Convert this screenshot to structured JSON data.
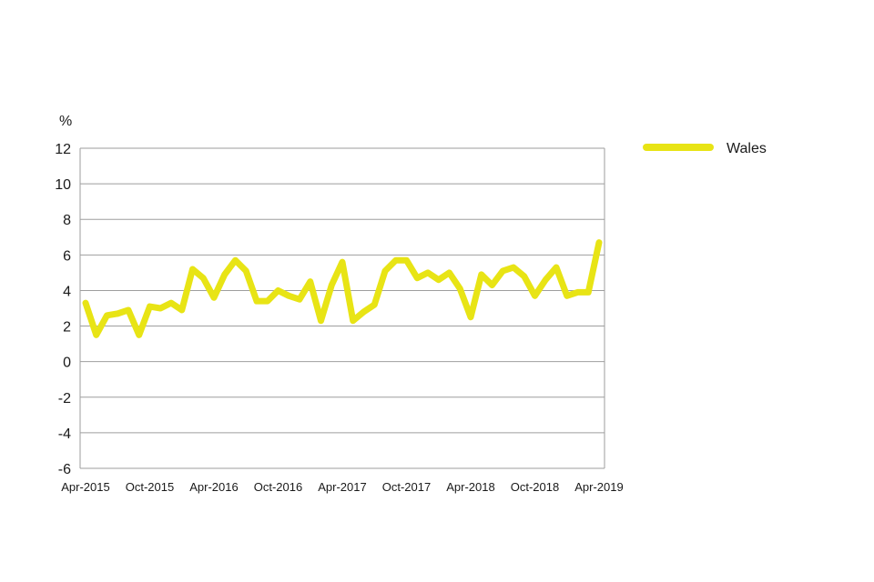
{
  "chart_data": {
    "type": "line",
    "ylabel": "%",
    "ylim": [
      -6,
      12
    ],
    "yticks": [
      12,
      10,
      8,
      6,
      4,
      2,
      0,
      -2,
      -4,
      -6
    ],
    "xlabels": [
      "Apr-2015",
      "Oct-2015",
      "Apr-2016",
      "Oct-2016",
      "Apr-2017",
      "Oct-2017",
      "Apr-2018",
      "Oct-2018",
      "Apr-2019"
    ],
    "x": [
      "Apr-2015",
      "May-2015",
      "Jun-2015",
      "Jul-2015",
      "Aug-2015",
      "Sep-2015",
      "Oct-2015",
      "Nov-2015",
      "Dec-2015",
      "Jan-2016",
      "Feb-2016",
      "Mar-2016",
      "Apr-2016",
      "May-2016",
      "Jun-2016",
      "Jul-2016",
      "Aug-2016",
      "Sep-2016",
      "Oct-2016",
      "Nov-2016",
      "Dec-2016",
      "Jan-2017",
      "Feb-2017",
      "Mar-2017",
      "Apr-2017",
      "May-2017",
      "Jun-2017",
      "Jul-2017",
      "Aug-2017",
      "Sep-2017",
      "Oct-2017",
      "Nov-2017",
      "Dec-2017",
      "Jan-2018",
      "Feb-2018",
      "Mar-2018",
      "Apr-2018",
      "May-2018",
      "Jun-2018",
      "Jul-2018",
      "Aug-2018",
      "Sep-2018",
      "Oct-2018",
      "Nov-2018",
      "Dec-2018",
      "Jan-2019",
      "Feb-2019",
      "Mar-2019",
      "Apr-2019"
    ],
    "series": [
      {
        "name": "Wales",
        "color": "#e8e415",
        "values": [
          3.3,
          1.5,
          2.6,
          2.7,
          2.9,
          1.5,
          3.1,
          3.0,
          3.3,
          2.9,
          5.2,
          4.7,
          3.6,
          4.9,
          5.7,
          5.1,
          3.4,
          3.4,
          4.0,
          3.7,
          3.5,
          4.5,
          2.3,
          4.3,
          5.6,
          2.3,
          2.8,
          3.2,
          5.1,
          5.7,
          5.7,
          4.7,
          5.0,
          4.6,
          5.0,
          4.1,
          2.5,
          4.9,
          4.3,
          5.1,
          5.3,
          4.8,
          3.7,
          4.6,
          5.3,
          3.7,
          3.9,
          3.9,
          6.7
        ]
      }
    ],
    "grid": true,
    "legend_position": "right"
  },
  "style": {
    "grid_color": "#9e9e9e",
    "line_color": "#e8e415"
  }
}
